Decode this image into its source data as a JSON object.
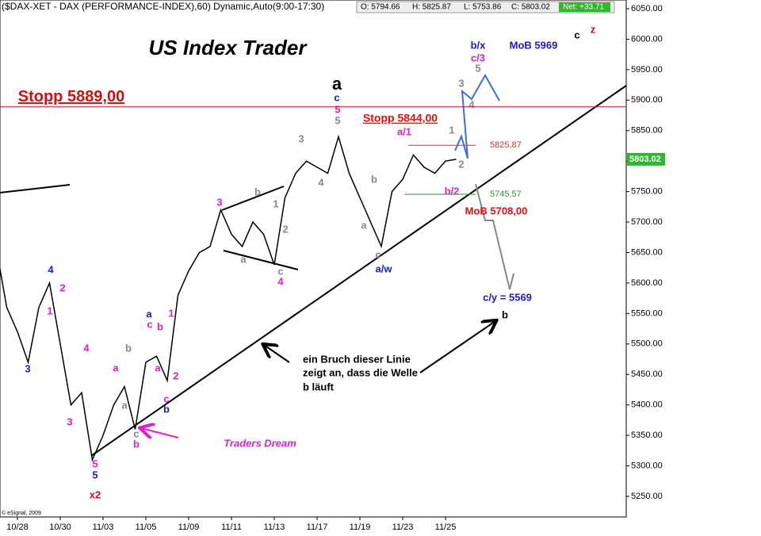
{
  "chart_data": {
    "type": "line",
    "title": "($DAX-XET - DAX (PERFORMANCE-INDEX),60) Dynamic,Auto(9:00-17:30)",
    "quote_labels": [
      "O: 5794.66",
      "H: 5825.87",
      "L: 5753.86",
      "C: 5803.02",
      "Net: +33.71"
    ],
    "footer": "© eSignal, 2009",
    "categories": [
      null,
      null,
      "10/28",
      null,
      null,
      null,
      "10/30",
      null,
      null,
      null,
      "11/03",
      null,
      null,
      null,
      "11/05",
      null,
      null,
      null,
      "11/09",
      null,
      null,
      null,
      "11/11",
      null,
      null,
      null,
      "11/13",
      null,
      null,
      null,
      "11/17",
      null,
      null,
      null,
      "11/19",
      null,
      null,
      null,
      "11/23",
      null,
      null,
      null,
      "11/25",
      null
    ],
    "series": [
      {
        "color": "#000000",
        "values": [
          5660,
          5560,
          5520,
          5470,
          5560,
          5600,
          5500,
          5400,
          5420,
          5310,
          5350,
          5400,
          5430,
          5360,
          5470,
          5480,
          5440,
          5580,
          5620,
          5650,
          5660,
          5720,
          5680,
          5660,
          5700,
          5680,
          5630,
          5740,
          5780,
          5800,
          5790,
          5780,
          5840,
          5780,
          5740,
          5700,
          5660,
          5750,
          5770,
          5810,
          5790,
          5780,
          5800,
          5803
        ]
      }
    ],
    "last_price": 5803.02,
    "ylim": [
      5250,
      6050
    ],
    "yticks": [
      {
        "value": 6050,
        "label": "6050.00"
      },
      {
        "value": 6000,
        "label": "6000.00"
      },
      {
        "value": 5950,
        "label": "5950.00"
      },
      {
        "value": 5900,
        "label": "5900.00"
      },
      {
        "value": 5850,
        "label": "5850.00"
      },
      {
        "value": 5800,
        "label": "5800.00"
      },
      {
        "value": 5750,
        "label": "5750.00"
      },
      {
        "value": 5700,
        "label": "5700.00"
      },
      {
        "value": 5650,
        "label": "5650.00"
      },
      {
        "value": 5600,
        "label": "5600.00"
      },
      {
        "value": 5550,
        "label": "5550.00"
      },
      {
        "value": 5500,
        "label": "5500.00"
      },
      {
        "value": 5450,
        "label": "5450.00"
      },
      {
        "value": 5400,
        "label": "5400.00"
      },
      {
        "value": 5350,
        "label": "5350.00"
      },
      {
        "value": 5300,
        "label": "5300.00"
      },
      {
        "value": 5250,
        "label": "5250.00"
      }
    ],
    "levels": [
      {
        "value": 5889,
        "label": "Stopp 5889,00"
      },
      {
        "value": 5825.87,
        "label": "5825,87"
      },
      {
        "value": 5745.57,
        "label": "5745,57"
      }
    ],
    "annotations": [
      "US Index Trader",
      "a",
      "c",
      "5",
      "5",
      "Stopp 5844,00",
      "a/1",
      "1",
      "2",
      "b/2",
      "3",
      "4",
      "5",
      "c/3",
      "b/x",
      "MoB 5969",
      "c",
      "z",
      "MoB 5708,00",
      "c/y = 5569",
      "b",
      "a/w",
      "a",
      "b",
      "c",
      "4",
      "1",
      "2",
      "3",
      "3",
      "4",
      "b",
      "a",
      "c",
      "4",
      "2",
      "1",
      "3",
      "4",
      "3",
      "5",
      "5",
      "x2",
      "a",
      "a",
      "b",
      "c",
      "b",
      "a",
      "c",
      "b",
      "1",
      "a",
      "2",
      "c",
      "b",
      "Traders Dream",
      "ein Bruch dieser Linie",
      "zeigt an, dass die Welle",
      "b läuft"
    ]
  }
}
